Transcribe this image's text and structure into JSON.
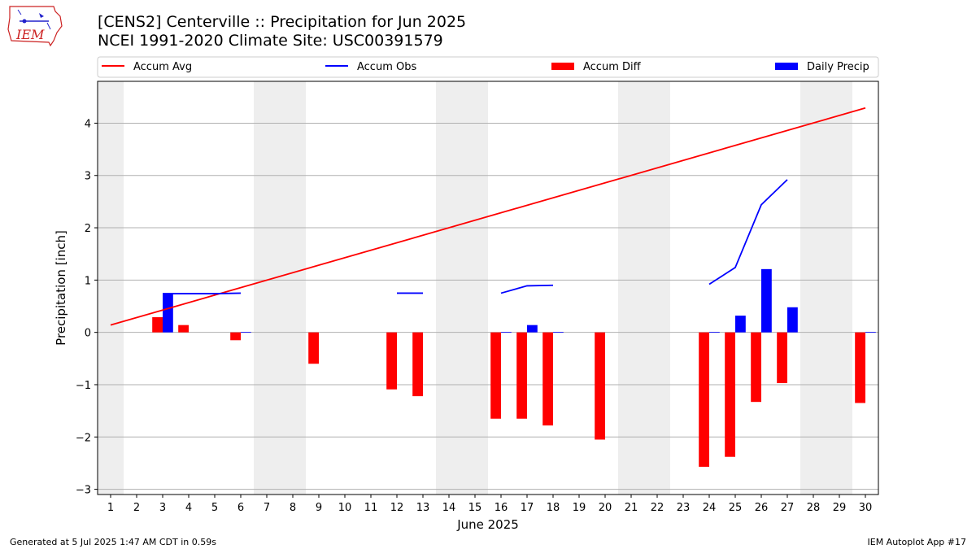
{
  "header": {
    "title_line1": "[CENS2] Centerville :: Precipitation for Jun 2025",
    "title_line2": "NCEI 1991-2020 Climate Site: USC00391579",
    "logo_text": "IEM"
  },
  "footer": {
    "left": "Generated at 5 Jul 2025 1:47 AM CDT in 0.59s",
    "right": "IEM Autoplot App #17"
  },
  "colors": {
    "avg": "#ff0000",
    "obs": "#0000ff",
    "diff": "#ff0000",
    "daily": "#0000ff",
    "weekend_shade": "#eeeeee",
    "grid": "#b0b0b0"
  },
  "chart_data": {
    "type": "bar",
    "xlabel": "June 2025",
    "ylabel": "Precipitation [inch]",
    "xlim": [
      0.5,
      30.5
    ],
    "ylim": [
      -3.1,
      4.8
    ],
    "yticks": [
      -3,
      -2,
      -1,
      0,
      1,
      2,
      3,
      4
    ],
    "ytick_labels": [
      "−3",
      "−2",
      "−1",
      "0",
      "1",
      "2",
      "3",
      "4"
    ],
    "xticks": [
      1,
      2,
      3,
      4,
      5,
      6,
      7,
      8,
      9,
      10,
      11,
      12,
      13,
      14,
      15,
      16,
      17,
      18,
      19,
      20,
      21,
      22,
      23,
      24,
      25,
      26,
      27,
      28,
      29,
      30
    ],
    "grid": "y",
    "legend_position": "top, single row above plot",
    "legend": [
      {
        "label": "Accum Avg",
        "kind": "line",
        "color": "#ff0000"
      },
      {
        "label": "Accum Obs",
        "kind": "line",
        "color": "#0000ff"
      },
      {
        "label": "Accum Diff",
        "kind": "bar",
        "color": "#ff0000"
      },
      {
        "label": "Daily Precip",
        "kind": "bar",
        "color": "#0000ff"
      }
    ],
    "weekend_days": [
      1,
      7,
      8,
      14,
      15,
      21,
      22,
      28,
      29
    ],
    "accum_avg": {
      "x": [
        1,
        30
      ],
      "y": [
        0.14,
        4.29
      ]
    },
    "accum_obs_segments": [
      {
        "x": [
          3,
          4,
          5,
          6
        ],
        "y": [
          0.74,
          0.74,
          0.74,
          0.75
        ]
      },
      {
        "x": [
          12,
          13
        ],
        "y": [
          0.75,
          0.75
        ]
      },
      {
        "x": [
          16,
          17,
          18
        ],
        "y": [
          0.75,
          0.89,
          0.9
        ]
      },
      {
        "x": [
          24,
          25,
          26,
          27
        ],
        "y": [
          0.92,
          1.24,
          2.44,
          2.92
        ]
      }
    ],
    "accum_diff": {
      "x": [
        3,
        4,
        6,
        9,
        12,
        13,
        16,
        17,
        18,
        20,
        24,
        25,
        26,
        27,
        30
      ],
      "values": [
        0.29,
        0.14,
        -0.15,
        -0.6,
        -1.09,
        -1.22,
        -1.65,
        -1.65,
        -1.78,
        -2.05,
        -2.57,
        -2.38,
        -1.33,
        -0.97,
        -1.35
      ]
    },
    "daily_precip": {
      "x": [
        3,
        6,
        16,
        17,
        18,
        24,
        25,
        26,
        27,
        30
      ],
      "values": [
        0.74,
        0.01,
        0.01,
        0.14,
        0.01,
        0.01,
        0.32,
        1.21,
        0.48,
        0.01
      ]
    }
  }
}
